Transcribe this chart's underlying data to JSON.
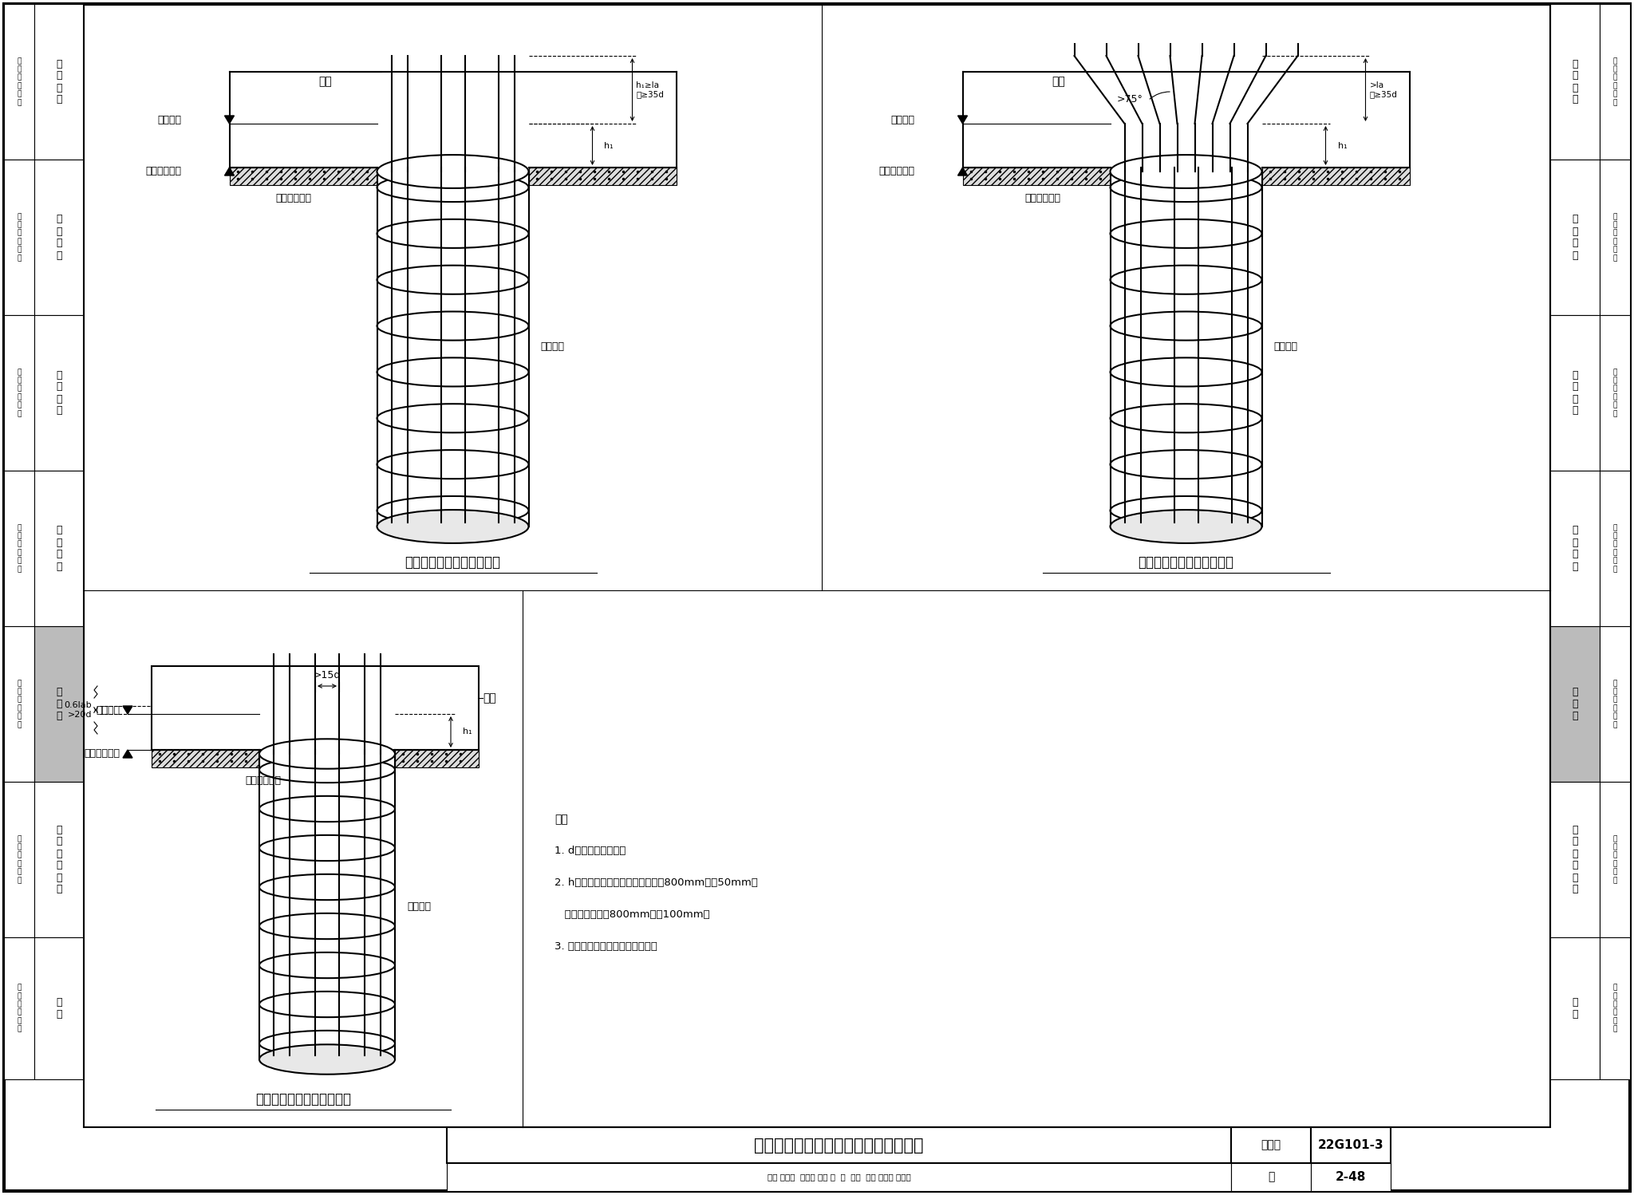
{
  "title_main": "钢筋混凝土灌注桩桩顶与承台连接构造",
  "title_atlas": "图集号",
  "title_atlas_num": "22G101-3",
  "page": "2-48",
  "page_label": "页",
  "bottom_staff": "审核 黄志刚  复查叫 校对 朱  轩  平均  设计 余绪尧 公佑尧",
  "d1_title": "桩顶与承台连接构造（一）",
  "d2_title": "桩顶与承台连接构造（二）",
  "d3_title": "桩顶与承台连接构造（三）",
  "note_title": "注：",
  "note1": "1. d为桩内纵筋直径。",
  "note2": "2. h为桩顶进入承台高度，桩径小于800mm时取50mm，",
  "note2b": "   桩径大于或等于800mm时取100mm。",
  "note3": "3. 桩头防水构造做法详见施工图。",
  "cats": [
    "一\n般\n构\n造",
    "独\n立\n基\n础",
    "条\n形\n基\n础",
    "筏\n形\n基\n础",
    "桩\n基\n础",
    "基\n础\n相\n关\n构\n造",
    "附\n录"
  ],
  "lbl": "标\n准\n构\n造\n详\n图",
  "section_heights": [
    195,
    195,
    195,
    195,
    195,
    195,
    178
  ],
  "highlight_index": 4,
  "bg": "#FFFFFF",
  "lc": "#000000",
  "hc": "#BBBBBB",
  "承台": "承台",
  "桩顶标高": "桩顶标高",
  "承台底面标高": "承台底面标高",
  "防水层和垫层": "防水层和垫层",
  "桩身纵筋": "桩身纵筋"
}
